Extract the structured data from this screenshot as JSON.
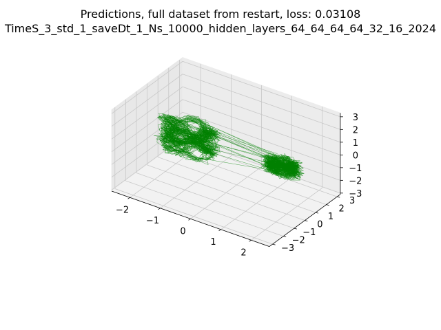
{
  "figure": {
    "title_line1": "Predictions, full dataset from restart, loss: 0.03108",
    "title_line2": "TimeS_3_std_1_saveDt_1_Ns_10000_hidden_layers_64_64_64_64_32_16_2024"
  },
  "chart_data": {
    "type": "line3d",
    "title": "Predictions, full dataset from restart, loss: 0.03108",
    "subtitle": "TimeS_3_std_1_saveDt_1_Ns_10000_hidden_layers_64_64_64_64_32_16_2024",
    "series_color": "#008000",
    "grid": true,
    "xlim": [
      -2.6,
      2.6
    ],
    "ylim": [
      -3.3,
      3.3
    ],
    "zlim": [
      -3.1,
      3.3
    ],
    "x_ticks": [
      -2,
      -1,
      0,
      1,
      2
    ],
    "y_ticks": [
      -3,
      -2,
      -1,
      0,
      1,
      2,
      3
    ],
    "z_ticks": [
      -3,
      -2,
      -1,
      0,
      1,
      2,
      3
    ],
    "x_tick_labels": [
      "−2",
      "−1",
      "0",
      "1",
      "2"
    ],
    "y_tick_labels": [
      "−3",
      "−2",
      "−1",
      "0",
      "1",
      "2",
      "3"
    ],
    "z_tick_labels": [
      "−3",
      "−2",
      "−1",
      "0",
      "1",
      "2",
      "3"
    ],
    "attractors": [
      {
        "center": [
          -1.3,
          0.2,
          0.0
        ],
        "spread": [
          0.9,
          0.9,
          1.0
        ]
      },
      {
        "center": [
          1.5,
          1.0,
          -0.4
        ],
        "spread": [
          0.5,
          0.5,
          0.4
        ]
      }
    ],
    "trajectory_count": 40
  }
}
